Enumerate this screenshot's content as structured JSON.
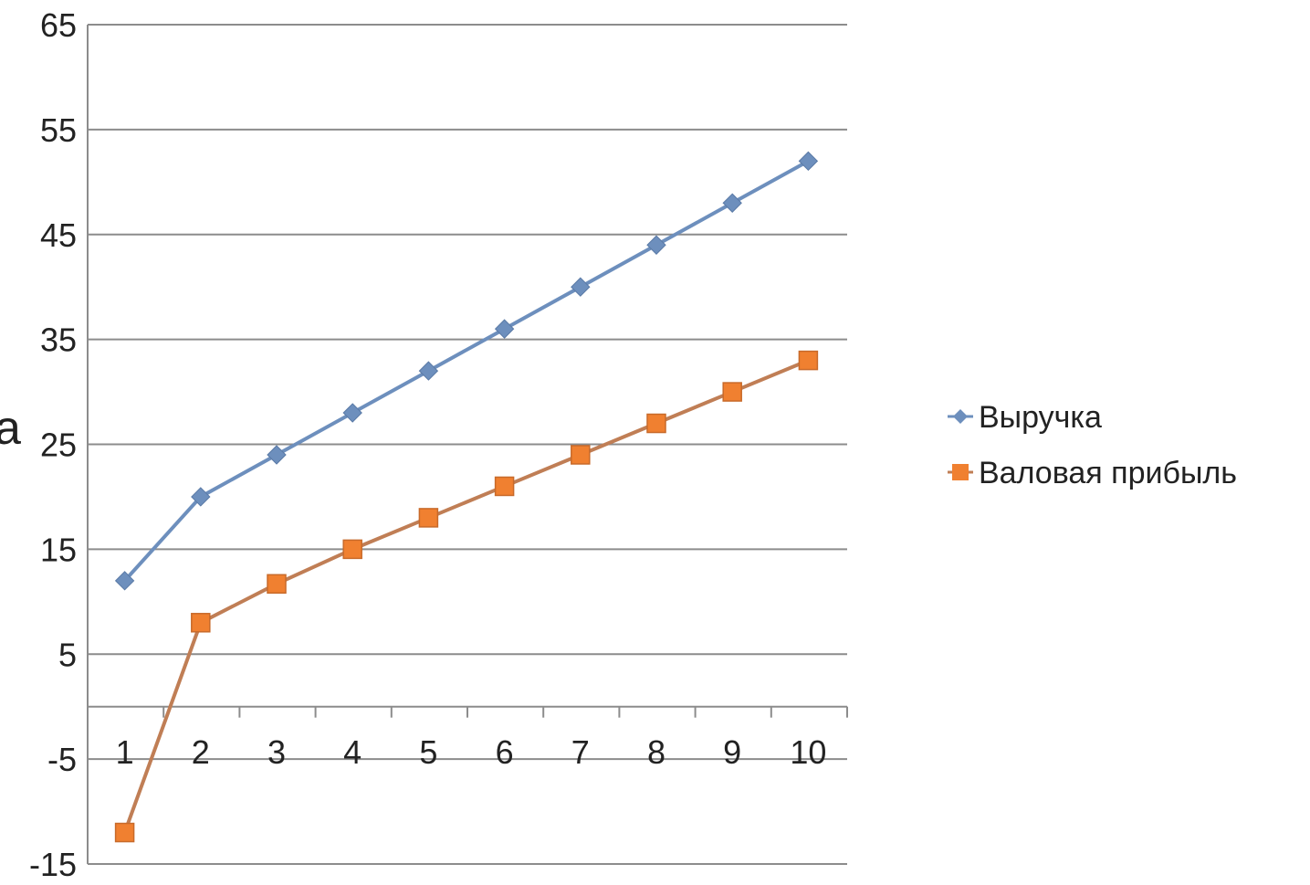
{
  "stray_text": "а",
  "chart_data": {
    "type": "line",
    "title": "",
    "xlabel": "",
    "ylabel": "",
    "categories": [
      "1",
      "2",
      "3",
      "4",
      "5",
      "6",
      "7",
      "8",
      "9",
      "10"
    ],
    "yticks": [
      "65",
      "55",
      "45",
      "35",
      "25",
      "15",
      "5",
      "-5",
      "-15"
    ],
    "ylim": [
      -15,
      65
    ],
    "grid": true,
    "legend_position": "right",
    "series": [
      {
        "name": "Выручка",
        "color": "#6d8fbd",
        "marker": "diamond",
        "values": [
          12,
          20,
          24,
          28,
          32,
          36,
          40,
          44,
          48,
          52
        ]
      },
      {
        "name": "Валовая прибыль",
        "color": "#f08030",
        "line_color": "#c07e55",
        "marker": "square",
        "values": [
          -12,
          8,
          11.7,
          15,
          18,
          21,
          24,
          27,
          30,
          33
        ]
      }
    ]
  }
}
